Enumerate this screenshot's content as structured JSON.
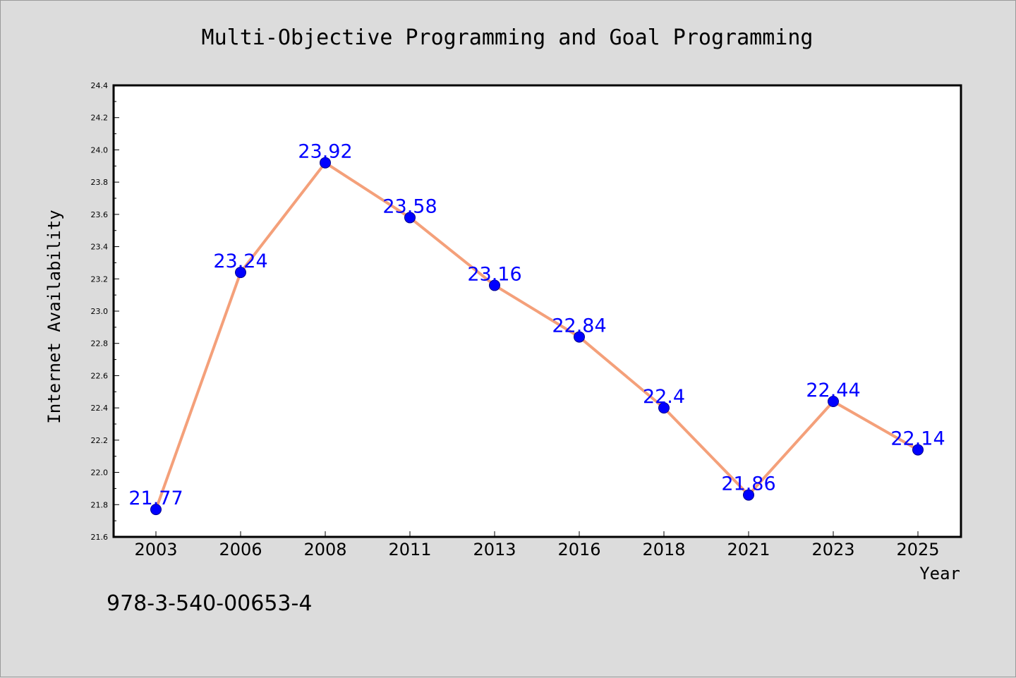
{
  "chart_data": {
    "type": "line",
    "title": "Multi-Objective Programming and Goal Programming",
    "xlabel": "Year",
    "ylabel": "Internet Availability",
    "categories": [
      "2003",
      "2006",
      "2008",
      "2011",
      "2013",
      "2016",
      "2018",
      "2021",
      "2023",
      "2025"
    ],
    "series": [
      {
        "values": [
          21.77,
          23.24,
          23.92,
          23.58,
          23.16,
          22.84,
          22.4,
          21.86,
          22.44,
          22.14
        ],
        "labels": [
          "21.77",
          "23.24",
          "23.92",
          "23.58",
          "23.16",
          "22.84",
          "22.4",
          "21.86",
          "22.44",
          "22.14"
        ],
        "line_color": "#f4a07a",
        "marker_color": "#0000ff"
      }
    ],
    "ylim": [
      21.6,
      24.4
    ],
    "yticks": [
      "21.6",
      "21.8",
      "22.0",
      "22.2",
      "22.4",
      "22.6",
      "22.8",
      "23.0",
      "23.2",
      "23.4",
      "23.6",
      "23.8",
      "24.0",
      "24.2",
      "24.4"
    ],
    "grid": false,
    "data_label_color": "#0000ff"
  },
  "footer": {
    "isbn": "978-3-540-00653-4"
  }
}
